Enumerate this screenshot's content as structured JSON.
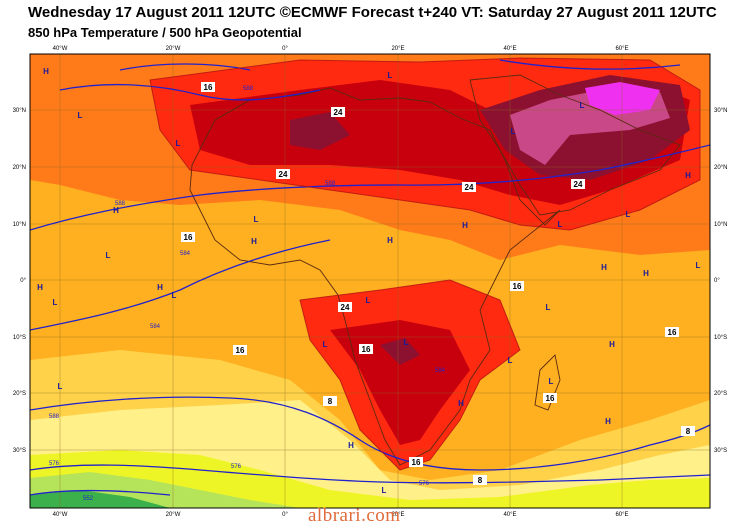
{
  "header": {
    "title_line1": "Wednesday 17 August 2011 12UTC ©ECMWF Forecast t+240 VT: Saturday 27 August 2011 12UTC",
    "title_line2": "850 hPa Temperature / 500 hPa Geopotential"
  },
  "axes": {
    "top_lon_labels": [
      "40°W",
      "20°W",
      "0°",
      "20°E",
      "40°E",
      "60°E"
    ],
    "bottom_lon_labels": [
      "40°W",
      "20°W",
      "0°",
      "20°E",
      "40°E",
      "60°E"
    ],
    "left_lat_labels": [
      "30°N",
      "20°N",
      "10°N",
      "0°",
      "10°S",
      "20°S",
      "30°S"
    ],
    "right_lat_labels": [
      "30°N",
      "20°N",
      "10°N",
      "0°",
      "10°S",
      "20°S",
      "30°S"
    ]
  },
  "temperature_labels": [
    "16",
    "24",
    "24",
    "24",
    "24",
    "16",
    "16",
    "24",
    "16",
    "16",
    "16",
    "16",
    "8",
    "8",
    "8",
    "16"
  ],
  "geopotential_labels": [
    "588",
    "588",
    "584",
    "588",
    "584",
    "588",
    "576",
    "576",
    "584",
    "576",
    "552"
  ],
  "pressure_markers": [
    "H",
    "L",
    "L",
    "H",
    "H",
    "L",
    "L",
    "H",
    "H",
    "L",
    "H",
    "L",
    "L",
    "L",
    "H",
    "H",
    "L",
    "L",
    "H",
    "L",
    "L",
    "H",
    "H",
    "L",
    "L",
    "H",
    "L",
    "L",
    "L",
    "L",
    "H",
    "L",
    "L",
    "H"
  ],
  "colors": {
    "t_lt0": "#3cb04a",
    "t_0_4": "#b5e35a",
    "t_4_8": "#eef526",
    "t_8_12": "#fff08a",
    "t_12_16": "#ffd24a",
    "t_16_20": "#ffb020",
    "t_20_24": "#ff7b1a",
    "t_24_28": "#ff2a10",
    "t_28_32": "#c8000e",
    "t_32_36": "#8c1030",
    "t_36_40": "#c84888",
    "t_gt40": "#f030f0",
    "contour": "#2222cc"
  },
  "watermark": "albrari.com"
}
